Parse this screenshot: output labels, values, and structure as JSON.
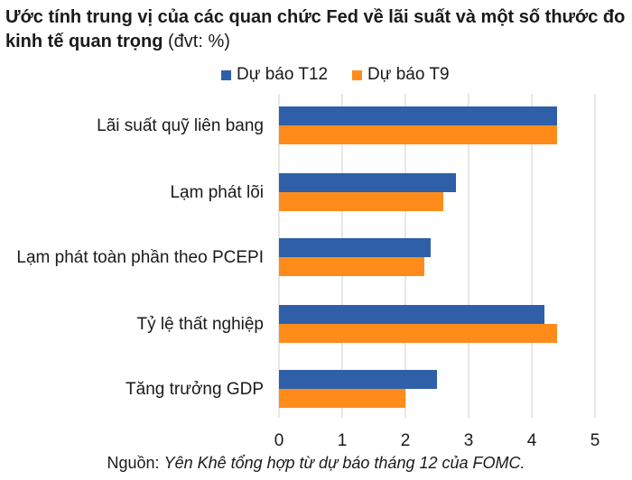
{
  "title": {
    "main": "Ước tính trung vị của các quan chức Fed về lãi suất và một số thước đo kinh tế quan trọng",
    "unit": "(đvt: %)"
  },
  "source": {
    "prefix": "Nguồn:",
    "text": "Yên Khê tổng hợp từ dự báo tháng 12 của FOMC."
  },
  "chart_data": {
    "type": "bar",
    "orientation": "horizontal",
    "categories": [
      "Lãi suất quỹ liên bang",
      "Lạm phát lõi",
      "Lạm phát toàn phần theo PCEPI",
      "Tỷ lệ thất nghiệp",
      "Tăng trưởng GDP"
    ],
    "series": [
      {
        "name": "Dự báo T12",
        "color": "#2e5fa8",
        "values": [
          4.4,
          2.8,
          2.4,
          4.2,
          2.5
        ]
      },
      {
        "name": "Dự báo T9",
        "color": "#ff8c1a",
        "values": [
          4.4,
          2.6,
          2.3,
          4.4,
          2.0
        ]
      }
    ],
    "xlim": [
      0,
      5
    ],
    "xticks": [
      "0",
      "1",
      "2",
      "3",
      "4",
      "5"
    ],
    "grid": "vertical",
    "gridline_color": "#cfcfcf",
    "legend_position": "top-center",
    "xlabel": "",
    "ylabel": ""
  }
}
